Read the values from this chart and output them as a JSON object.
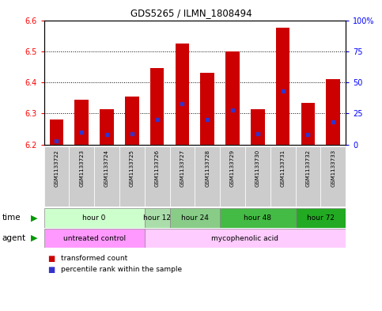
{
  "title": "GDS5265 / ILMN_1808494",
  "samples": [
    "GSM1133722",
    "GSM1133723",
    "GSM1133724",
    "GSM1133725",
    "GSM1133726",
    "GSM1133727",
    "GSM1133728",
    "GSM1133729",
    "GSM1133730",
    "GSM1133731",
    "GSM1133732",
    "GSM1133733"
  ],
  "bar_values": [
    6.28,
    6.345,
    6.315,
    6.355,
    6.445,
    6.525,
    6.43,
    6.5,
    6.315,
    6.575,
    6.335,
    6.41
  ],
  "percentile_values": [
    3.0,
    10.0,
    8.0,
    9.0,
    20.0,
    33.0,
    20.0,
    28.0,
    9.0,
    43.0,
    8.0,
    18.0
  ],
  "bar_bottom": 6.2,
  "ylim_left": [
    6.2,
    6.6
  ],
  "ylim_right": [
    0,
    100
  ],
  "yticks_left": [
    6.2,
    6.3,
    6.4,
    6.5,
    6.6
  ],
  "yticks_right": [
    0,
    25,
    50,
    75,
    100
  ],
  "bar_color": "#CC0000",
  "dot_color": "#3333CC",
  "background_color": "#ffffff",
  "plot_bg_color": "#ffffff",
  "time_groups": [
    {
      "label": "hour 0",
      "start": 0,
      "end": 4,
      "color": "#ccffcc"
    },
    {
      "label": "hour 12",
      "start": 4,
      "end": 5,
      "color": "#aaddaa"
    },
    {
      "label": "hour 24",
      "start": 5,
      "end": 7,
      "color": "#88cc88"
    },
    {
      "label": "hour 48",
      "start": 7,
      "end": 10,
      "color": "#44bb44"
    },
    {
      "label": "hour 72",
      "start": 10,
      "end": 12,
      "color": "#22aa22"
    }
  ],
  "agent_groups": [
    {
      "label": "untreated control",
      "start": 0,
      "end": 4,
      "color": "#ff99ff"
    },
    {
      "label": "mycophenolic acid",
      "start": 4,
      "end": 12,
      "color": "#ffccff"
    }
  ],
  "sample_label_bg": "#cccccc",
  "legend_items": [
    {
      "label": "transformed count",
      "color": "#CC0000"
    },
    {
      "label": "percentile rank within the sample",
      "color": "#3333CC"
    }
  ]
}
